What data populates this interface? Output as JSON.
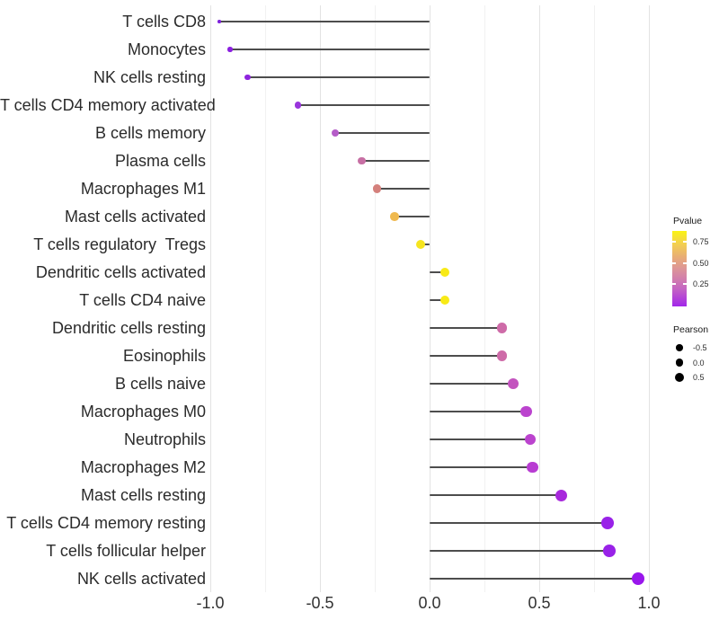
{
  "chart_data": {
    "type": "scatter",
    "variant": "horizontal-lollipop",
    "title": "",
    "xlabel": "",
    "ylabel": "",
    "xlim": [
      -1.0,
      1.0
    ],
    "x_ticks": [
      -1.0,
      -0.5,
      0.0,
      0.5,
      1.0
    ],
    "x_tick_labels": [
      "-1.0",
      "-0.5",
      "0.0",
      "0.5",
      "1.0"
    ],
    "x_minor_ticks": [
      -0.75,
      -0.25,
      0.25,
      0.75
    ],
    "grid": true,
    "color_encoding": "Pvalue",
    "size_encoding": "Pearson",
    "points": [
      {
        "category": "T cells CD8",
        "pearson": -0.96,
        "color": "#7e22dc",
        "diameter": 3.5
      },
      {
        "category": "Monocytes",
        "pearson": -0.91,
        "color": "#8b1fe0",
        "diameter": 5.5
      },
      {
        "category": "NK cells resting",
        "pearson": -0.83,
        "color": "#8e24de",
        "diameter": 6.5
      },
      {
        "category": "T cells CD4 memory activated",
        "pearson": -0.6,
        "color": "#9935dc",
        "diameter": 7.5
      },
      {
        "category": "B cells memory",
        "pearson": -0.43,
        "color": "#b55cc8",
        "diameter": 8.5
      },
      {
        "category": "Plasma cells",
        "pearson": -0.31,
        "color": "#c76fa4",
        "diameter": 8.8
      },
      {
        "category": "Macrophages M1",
        "pearson": -0.24,
        "color": "#d4807c",
        "diameter": 9.2
      },
      {
        "category": "Mast cells activated",
        "pearson": -0.16,
        "color": "#efb94f",
        "diameter": 9.6
      },
      {
        "category": "T cells regulatory  Tregs",
        "pearson": -0.04,
        "color": "#f6e51f",
        "diameter": 10.0
      },
      {
        "category": "Dendritic cells activated",
        "pearson": 0.07,
        "color": "#f8ea16",
        "diameter": 10.4
      },
      {
        "category": "T cells CD4 naive",
        "pearson": 0.07,
        "color": "#f8ea16",
        "diameter": 10.4
      },
      {
        "category": "Dendritic cells resting",
        "pearson": 0.33,
        "color": "#ce6ba8",
        "diameter": 11.5
      },
      {
        "category": "Eosinophils",
        "pearson": 0.33,
        "color": "#ce6ba8",
        "diameter": 11.5
      },
      {
        "category": "B cells naive",
        "pearson": 0.38,
        "color": "#c353be",
        "diameter": 12.0
      },
      {
        "category": "Macrophages M0",
        "pearson": 0.44,
        "color": "#bb43ce",
        "diameter": 12.4
      },
      {
        "category": "Neutrophils",
        "pearson": 0.46,
        "color": "#bb43ce",
        "diameter": 12.4
      },
      {
        "category": "Macrophages M2",
        "pearson": 0.47,
        "color": "#b83cd2",
        "diameter": 12.4
      },
      {
        "category": "Mast cells resting",
        "pearson": 0.6,
        "color": "#a829dc",
        "diameter": 13.0
      },
      {
        "category": "T cells CD4 memory resting",
        "pearson": 0.81,
        "color": "#9922e8",
        "diameter": 13.8
      },
      {
        "category": "T cells follicular helper",
        "pearson": 0.82,
        "color": "#9922e8",
        "diameter": 13.8
      },
      {
        "category": "NK cells activated",
        "pearson": 0.95,
        "color": "#9916ec",
        "diameter": 14.6
      }
    ],
    "legends": {
      "pvalue": {
        "title": "Pvalue",
        "tick_labels": [
          "0.75",
          "0.50",
          "0.25"
        ],
        "gradient_top_color": "#faf314",
        "gradient_bottom_color": "#a227ea"
      },
      "pearson_size": {
        "title": "Pearson",
        "items": [
          {
            "label": "-0.5",
            "diameter": 7.4
          },
          {
            "label": "0.0",
            "diameter": 8.6
          },
          {
            "label": "0.5",
            "diameter": 10.0
          }
        ]
      }
    },
    "colors": {
      "stem": "#4d4d4d",
      "grid_major": "#e3e3e3",
      "grid_minor": "#f1f1f1",
      "axis_text": "#333333",
      "background": "#ffffff"
    }
  }
}
